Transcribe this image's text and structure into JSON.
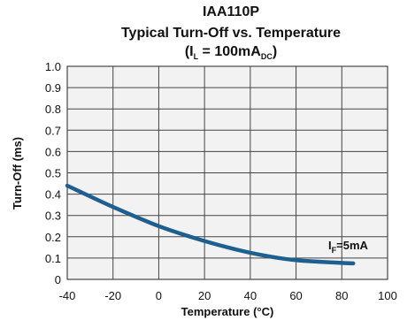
{
  "chart_data": {
    "type": "line",
    "title": "IAA110P",
    "subtitle": "Typical Turn-Off vs. Temperature",
    "condition": {
      "open": "(I",
      "sub": "L",
      "mid": " = 100mA",
      "unit_sub": "DC",
      "close": ")"
    },
    "xlabel": "Temperature (°C)",
    "ylabel": "Turn-Off (ms)",
    "xlim": [
      -40,
      100
    ],
    "ylim": [
      0,
      1.0
    ],
    "x_ticks": [
      "-40",
      "-20",
      "0",
      "20",
      "40",
      "60",
      "80",
      "100"
    ],
    "y_ticks": [
      "0",
      "0.1",
      "0.2",
      "0.3",
      "0.4",
      "0.5",
      "0.6",
      "0.7",
      "0.8",
      "0.9",
      "1.0"
    ],
    "grid": true,
    "series": [
      {
        "name": "IF=5mA",
        "label_main": "I",
        "label_sub": "F",
        "label_tail": "=5mA",
        "color": "#1d5f8f",
        "x": [
          -40,
          -20,
          0,
          20,
          40,
          60,
          85
        ],
        "y": [
          0.44,
          0.34,
          0.25,
          0.18,
          0.125,
          0.09,
          0.075
        ]
      }
    ]
  }
}
